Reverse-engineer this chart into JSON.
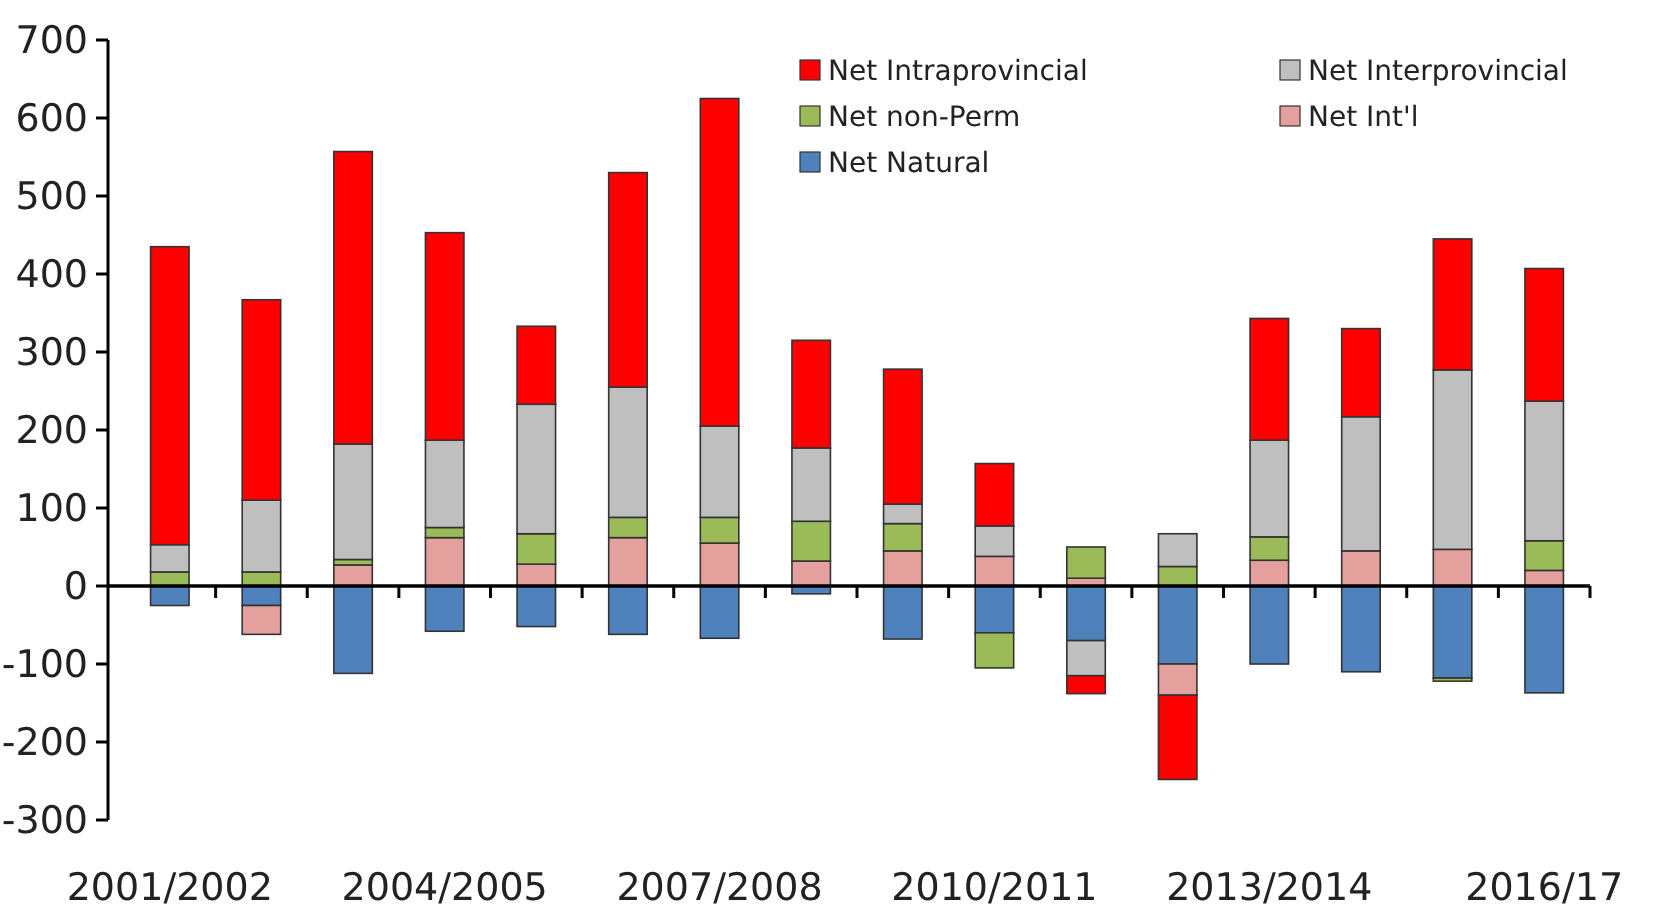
{
  "chart_data": {
    "type": "bar",
    "stacked": true,
    "categories": [
      "2001/2002",
      null,
      null,
      "2004/2005",
      null,
      null,
      "2007/2008",
      null,
      null,
      "2010/2011",
      null,
      null,
      "2013/2014",
      null,
      null,
      "2016/17"
    ],
    "series": [
      {
        "name": "Net Natural",
        "color": "#4f81bd",
        "values": [
          -25,
          -25,
          -112,
          -58,
          -52,
          -62,
          -67,
          -10,
          -68,
          -60,
          -70,
          -100,
          -100,
          -110,
          -118,
          -137
        ]
      },
      {
        "name": "Net Int'l",
        "color": "#e3a09c",
        "values": [
          0,
          -37,
          27,
          62,
          28,
          62,
          55,
          32,
          45,
          38,
          10,
          -40,
          33,
          45,
          47,
          20
        ]
      },
      {
        "name": "Net non-Perm",
        "color": "#9bbb59",
        "values": [
          18,
          18,
          7,
          13,
          39,
          26,
          33,
          51,
          35,
          -45,
          40,
          25,
          30,
          0,
          -4,
          38
        ]
      },
      {
        "name": "Net Interprovincial",
        "color": "#bfbfbf",
        "values": [
          35,
          92,
          148,
          112,
          166,
          167,
          117,
          94,
          25,
          39,
          -45,
          42,
          124,
          172,
          230,
          179
        ]
      },
      {
        "name": "Net Intraprovincial",
        "color": "#ff0000",
        "values": [
          382,
          257,
          375,
          266,
          100,
          275,
          420,
          138,
          173,
          80,
          -23,
          -108,
          156,
          113,
          168,
          170
        ]
      }
    ],
    "ylim": [
      -300,
      700
    ],
    "yticks": [
      -300,
      -200,
      -100,
      0,
      100,
      200,
      300,
      400,
      500,
      600,
      700
    ],
    "legend": "top right"
  }
}
